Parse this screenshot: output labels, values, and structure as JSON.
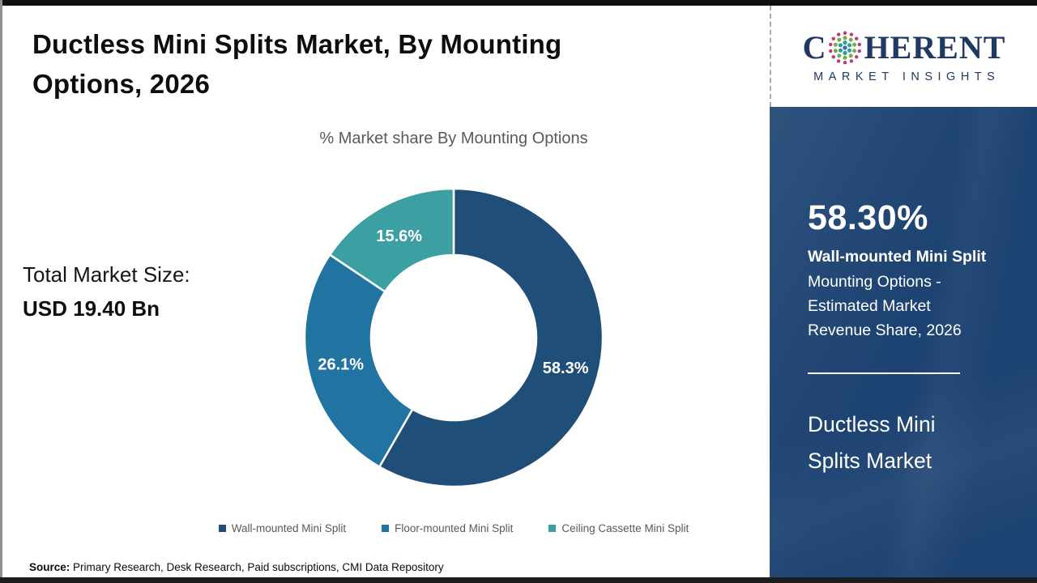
{
  "page": {
    "title": "Ductless Mini Splits Market, By Mounting Options, 2026",
    "subtitle": "% Market share By Mounting Options",
    "total_label": "Total Market Size:",
    "total_value": "USD 19.40 Bn",
    "source_label": "Source:",
    "source_text": " Primary Research, Desk Research, Paid subscriptions, CMI Data Repository"
  },
  "logo": {
    "brand_left": "C",
    "brand_right": "HERENT",
    "brand_sub": "MARKET INSIGHTS",
    "text_color": "#1f3864",
    "globe_dot_colors": [
      "#bf3978",
      "#72b043",
      "#2f9e9b",
      "#3a6bb0"
    ]
  },
  "sidebar": {
    "bg_color": "#1c4271",
    "stat_value": "58.30%",
    "stat_title": "Wall-mounted Mini Split",
    "stat_description": "Mounting Options - Estimated Market Revenue Share, 2026",
    "report_title": "Ductless Mini Splits Market"
  },
  "chart_data": {
    "type": "pie",
    "donut": true,
    "title": "% Market share By Mounting Options",
    "categories": [
      "Wall-mounted Mini Split",
      "Floor-mounted Mini Split",
      "Ceiling Cassette Mini Split"
    ],
    "values": [
      58.3,
      26.1,
      15.6
    ],
    "labels": [
      "58.3%",
      "26.1%",
      "15.6%"
    ],
    "colors": [
      "#1f4e79",
      "#2173a2",
      "#3c9fa2"
    ],
    "start_angle_deg": 0,
    "direction": "clockwise",
    "legend_position": "bottom",
    "label_color": "#ffffff"
  }
}
